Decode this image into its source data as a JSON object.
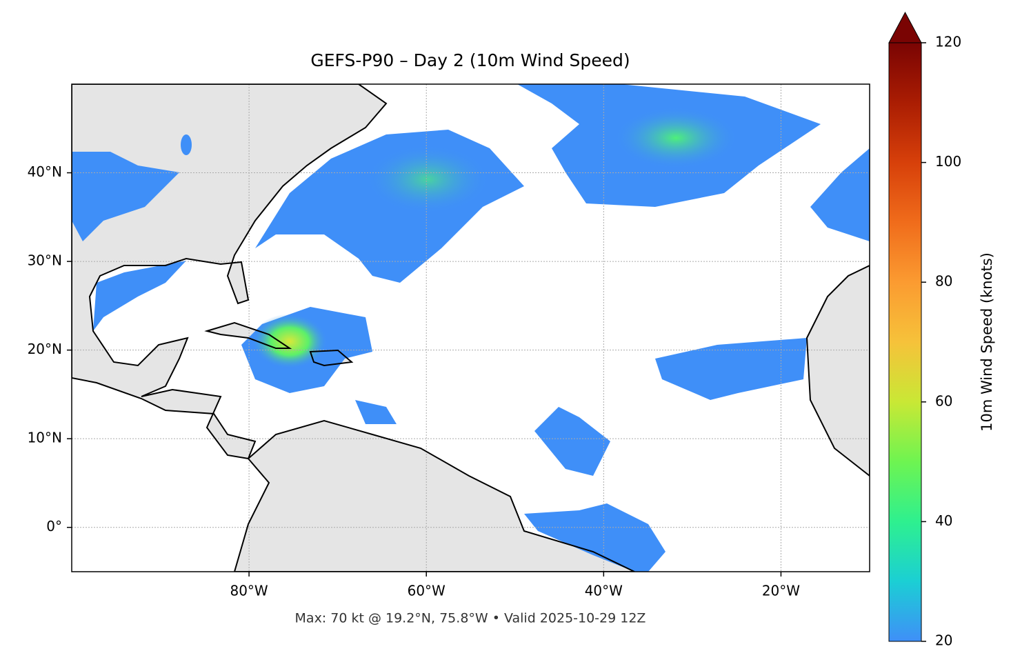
{
  "title": "GEFS-P90 – Day 2 (10m Wind Speed)",
  "footer": "Max: 70 kt @ 19.2°N, 75.8°W • Valid 2025-10-29 12Z",
  "map": {
    "xlim": [
      -100,
      -10
    ],
    "ylim": [
      -5,
      50
    ],
    "xticks": [
      {
        "value": -80,
        "label": "80°W"
      },
      {
        "value": -60,
        "label": "60°W"
      },
      {
        "value": -40,
        "label": "40°W"
      },
      {
        "value": -20,
        "label": "20°W"
      }
    ],
    "yticks": [
      {
        "value": 0,
        "label": "0°"
      },
      {
        "value": 10,
        "label": "10°N"
      },
      {
        "value": 20,
        "label": "20°N"
      },
      {
        "value": 30,
        "label": "30°N"
      },
      {
        "value": 40,
        "label": "40°N"
      }
    ],
    "grid": true
  },
  "colorbar": {
    "label": "10m Wind Speed (knots)",
    "lim": [
      20,
      120
    ],
    "ticks": [
      20,
      40,
      60,
      80,
      100,
      120
    ],
    "extend": "max"
  }
}
